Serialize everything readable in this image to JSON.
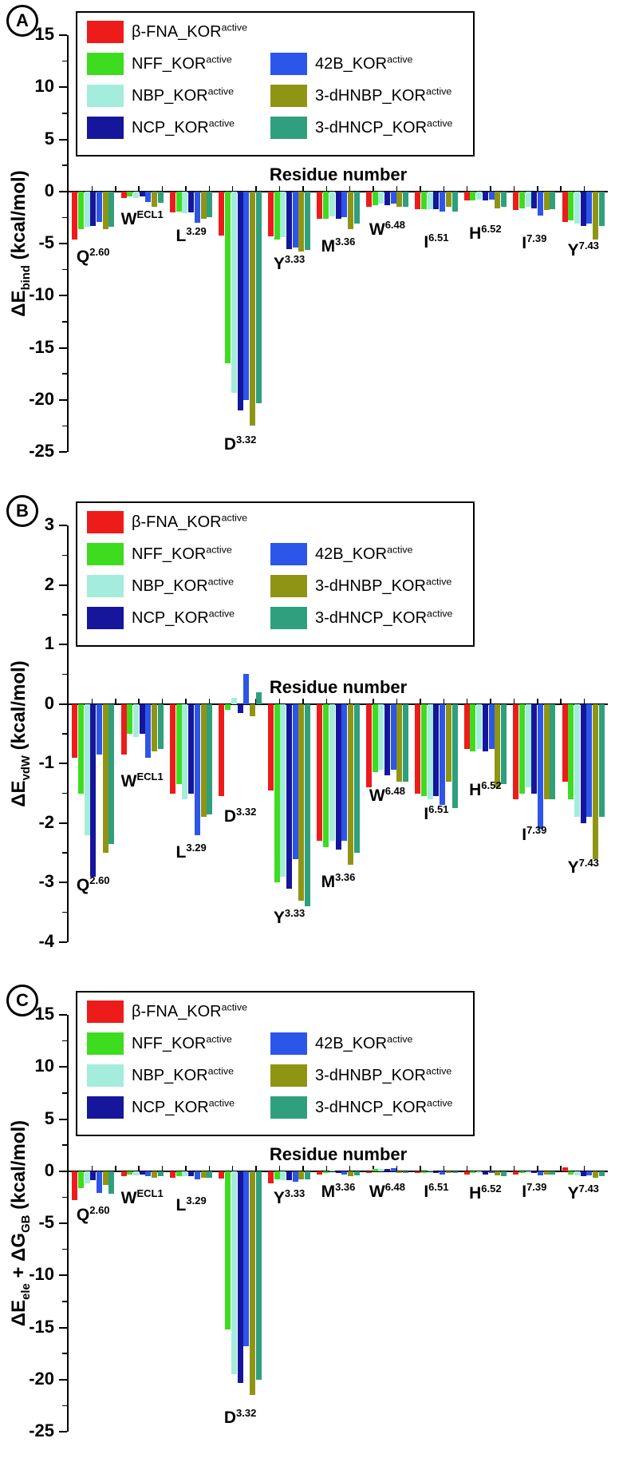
{
  "figure": {
    "panel_letters": [
      "A",
      "B",
      "C"
    ]
  },
  "chart_data": [
    {
      "type": "bar",
      "panel": "A",
      "xlabel": "Residue number",
      "ylabel": "ΔE_{bind} (kcal/mol)",
      "ylim": [
        -25,
        15
      ],
      "yticks": [
        15,
        10,
        5,
        0,
        -5,
        -10,
        -15,
        -20,
        -25
      ],
      "minor_tick_step": 2.5,
      "legend_position": "top-inside",
      "grid": false,
      "categories": [
        "Q^{2.60}",
        "W^{ECL1}",
        "L^{3.29}",
        "D^{3.32}",
        "Y^{3.33}",
        "M^{3.36}",
        "W^{6.48}",
        "I^{6.51}",
        "H^{6.52}",
        "I^{7.39}",
        "Y^{7.43}"
      ],
      "category_label_y": [
        -6.3,
        -2.7,
        -4.3,
        -24.3,
        -7.0,
        -5.3,
        -3.7,
        -4.9,
        -4.1,
        -5.0,
        -5.7
      ],
      "series": [
        {
          "name": "β-FNA_KOR^{active}",
          "color": "#ee1b1b",
          "values": [
            -4.6,
            -0.6,
            -2.0,
            -4.2,
            -4.3,
            -2.6,
            -1.5,
            -1.7,
            -0.9,
            -1.8,
            -2.9
          ]
        },
        {
          "name": "NFF_KOR^{active}",
          "color": "#3edc1f",
          "values": [
            -3.6,
            -0.5,
            -1.9,
            -16.5,
            -4.6,
            -2.6,
            -1.3,
            -1.7,
            -0.9,
            -1.6,
            -2.8
          ]
        },
        {
          "name": "NBP_KOR^{active}",
          "color": "#a4ecdb",
          "values": [
            -3.4,
            -0.6,
            -2.1,
            -19.3,
            -4.4,
            -2.4,
            -1.2,
            -1.7,
            -0.8,
            -1.5,
            -3.1
          ]
        },
        {
          "name": "NCP_KOR^{active}",
          "color": "#15169b",
          "values": [
            -3.3,
            -0.5,
            -2.0,
            -21.0,
            -5.5,
            -2.6,
            -1.3,
            -1.7,
            -0.9,
            -1.6,
            -3.3
          ]
        },
        {
          "name": "42B_KOR^{active}",
          "color": "#2c55ea",
          "values": [
            -2.9,
            -1.0,
            -3.0,
            -20.0,
            -5.4,
            -2.5,
            -1.2,
            -1.9,
            -0.8,
            -2.3,
            -3.1
          ]
        },
        {
          "name": "3-dHNBP_KOR^{active}",
          "color": "#8f9513",
          "values": [
            -3.6,
            -1.5,
            -2.6,
            -22.5,
            -5.8,
            -3.6,
            -1.5,
            -1.5,
            -1.6,
            -1.8,
            -4.6
          ]
        },
        {
          "name": "3-dHNCP_KOR^{active}",
          "color": "#2f9f7d",
          "values": [
            -3.4,
            -1.1,
            -2.5,
            -20.3,
            -5.6,
            -3.1,
            -1.5,
            -1.9,
            -1.5,
            -1.7,
            -3.3
          ]
        }
      ]
    },
    {
      "type": "bar",
      "panel": "B",
      "xlabel": "Residue number",
      "ylabel": "ΔE_{vdW} (kcal/mol)",
      "ylim": [
        -4,
        3
      ],
      "yticks": [
        3,
        2,
        1,
        0,
        -1,
        -2,
        -3,
        -4
      ],
      "minor_tick_step": 0.5,
      "legend_position": "top-inside",
      "grid": false,
      "categories": [
        "Q^{2.60}",
        "W^{ECL1}",
        "L^{3.29}",
        "D^{3.32}",
        "Y^{3.33}",
        "M^{3.36}",
        "W^{6.48}",
        "I^{6.51}",
        "H^{6.52}",
        "I^{7.39}",
        "Y^{7.43}"
      ],
      "category_label_y": [
        -3.05,
        -1.3,
        -2.5,
        -1.9,
        -3.6,
        -3.0,
        -1.55,
        -1.85,
        -1.45,
        -2.2,
        -2.75
      ],
      "series": [
        {
          "name": "β-FNA_KOR^{active}",
          "color": "#ee1b1b",
          "values": [
            -0.9,
            -0.85,
            -1.5,
            -1.55,
            -1.45,
            -2.3,
            -1.4,
            -1.5,
            -0.75,
            -1.6,
            -1.3
          ]
        },
        {
          "name": "NFF_KOR^{active}",
          "color": "#3edc1f",
          "values": [
            -1.5,
            -0.5,
            -1.35,
            -0.1,
            -3.0,
            -2.4,
            -1.15,
            -1.55,
            -0.8,
            -1.5,
            -1.6
          ]
        },
        {
          "name": "NBP_KOR^{active}",
          "color": "#a4ecdb",
          "values": [
            -2.2,
            -0.55,
            -1.6,
            0.1,
            -2.9,
            -2.3,
            -1.1,
            -1.6,
            -0.75,
            -1.4,
            -1.9
          ]
        },
        {
          "name": "NCP_KOR^{active}",
          "color": "#15169b",
          "values": [
            -2.9,
            -0.5,
            -1.5,
            -0.15,
            -3.1,
            -2.45,
            -1.2,
            -1.55,
            -0.8,
            -1.5,
            -2.0
          ]
        },
        {
          "name": "42B_KOR^{active}",
          "color": "#2c55ea",
          "values": [
            -0.85,
            -0.9,
            -2.2,
            0.5,
            -2.6,
            -2.3,
            -1.1,
            -1.7,
            -0.75,
            -2.1,
            -1.9
          ]
        },
        {
          "name": "3-dHNBP_KOR^{active}",
          "color": "#8f9513",
          "values": [
            -2.5,
            -0.8,
            -1.9,
            -0.2,
            -3.3,
            -2.7,
            -1.3,
            -1.3,
            -1.4,
            -1.6,
            -2.6
          ]
        },
        {
          "name": "3-dHNCP_KOR^{active}",
          "color": "#2f9f7d",
          "values": [
            -2.35,
            -0.75,
            -1.85,
            0.2,
            -3.4,
            -2.5,
            -1.3,
            -1.75,
            -1.35,
            -1.6,
            -1.9
          ]
        }
      ]
    },
    {
      "type": "bar",
      "panel": "C",
      "xlabel": "Residue number",
      "ylabel": "ΔE_{ele} + ΔG_{GB} (kcal/mol)",
      "ylim": [
        -25,
        15
      ],
      "yticks": [
        15,
        10,
        5,
        0,
        -5,
        -10,
        -15,
        -20,
        -25
      ],
      "minor_tick_step": 2.5,
      "legend_position": "top-inside",
      "grid": false,
      "categories": [
        "Q^{2.60}",
        "W^{ECL1}",
        "L^{3.29}",
        "D^{3.32}",
        "Y^{3.33}",
        "M^{3.36}",
        "W^{6.48}",
        "I^{6.51}",
        "H^{6.52}",
        "I^{7.39}",
        "Y^{7.43}"
      ],
      "category_label_y": [
        -4.2,
        -2.6,
        -3.3,
        -23.7,
        -2.6,
        -2.0,
        -2.0,
        -2.0,
        -2.2,
        -2.0,
        -2.2
      ],
      "series": [
        {
          "name": "β-FNA_KOR^{active}",
          "color": "#ee1b1b",
          "values": [
            -2.8,
            -0.5,
            -0.6,
            -0.7,
            -1.2,
            -0.3,
            -0.2,
            -0.2,
            -0.3,
            -0.3,
            0.4
          ]
        },
        {
          "name": "NFF_KOR^{active}",
          "color": "#3edc1f",
          "values": [
            -1.6,
            -0.3,
            -0.5,
            -15.2,
            -0.8,
            -0.2,
            0.2,
            -0.15,
            -0.2,
            -0.2,
            -0.3
          ]
        },
        {
          "name": "NBP_KOR^{active}",
          "color": "#a4ecdb",
          "values": [
            -1.2,
            -0.4,
            -0.5,
            -19.5,
            -0.9,
            0.1,
            0.2,
            0.1,
            -0.2,
            -0.2,
            -0.4
          ]
        },
        {
          "name": "NCP_KOR^{active}",
          "color": "#15169b",
          "values": [
            -0.9,
            -0.3,
            -0.5,
            -20.3,
            -0.9,
            -0.2,
            0.2,
            -0.2,
            -0.3,
            -0.2,
            -0.5
          ]
        },
        {
          "name": "42B_KOR^{active}",
          "color": "#2c55ea",
          "values": [
            -2.1,
            -0.5,
            -0.8,
            -16.8,
            -1.0,
            -0.3,
            0.3,
            -0.3,
            -0.2,
            -0.4,
            -0.4
          ]
        },
        {
          "name": "3-dHNBP_KOR^{active}",
          "color": "#8f9513",
          "values": [
            -1.3,
            -0.6,
            -0.6,
            -21.5,
            -0.8,
            -0.5,
            -0.2,
            -0.2,
            -0.4,
            -0.3,
            -0.6
          ]
        },
        {
          "name": "3-dHNCP_KOR^{active}",
          "color": "#2f9f7d",
          "values": [
            -2.2,
            -0.5,
            -0.6,
            -20.0,
            -0.8,
            -0.4,
            -0.2,
            -0.2,
            -0.5,
            -0.3,
            -0.5
          ]
        }
      ]
    }
  ]
}
